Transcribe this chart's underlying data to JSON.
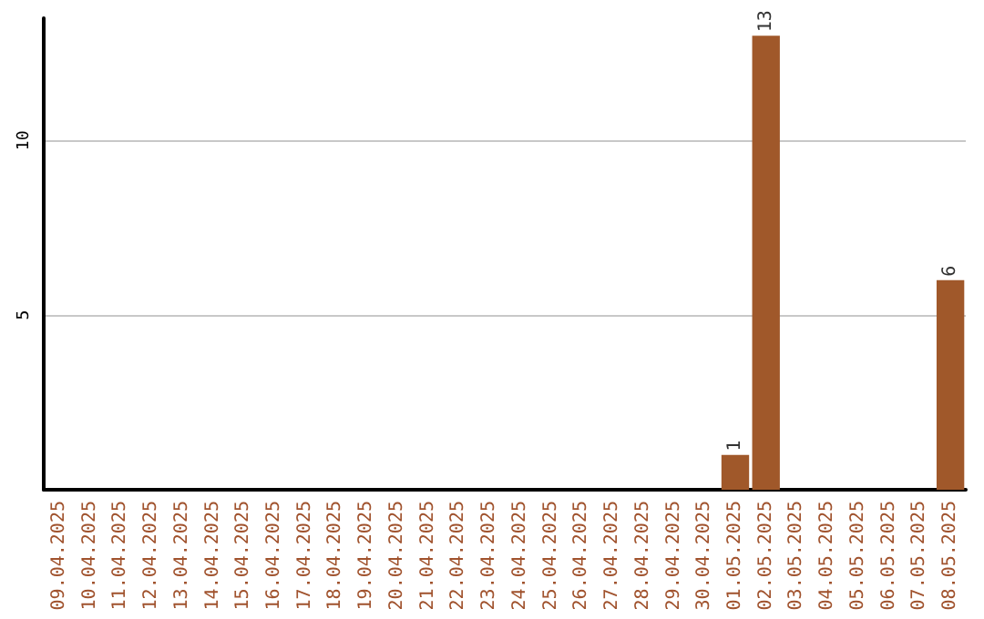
{
  "chart_data": {
    "type": "bar",
    "categories": [
      "09.04.2025",
      "10.04.2025",
      "11.04.2025",
      "12.04.2025",
      "13.04.2025",
      "14.04.2025",
      "15.04.2025",
      "16.04.2025",
      "17.04.2025",
      "18.04.2025",
      "19.04.2025",
      "20.04.2025",
      "21.04.2025",
      "22.04.2025",
      "23.04.2025",
      "24.04.2025",
      "25.04.2025",
      "26.04.2025",
      "27.04.2025",
      "28.04.2025",
      "29.04.2025",
      "30.04.2025",
      "01.05.2025",
      "02.05.2025",
      "03.05.2025",
      "04.05.2025",
      "05.05.2025",
      "06.05.2025",
      "07.05.2025",
      "08.05.2025"
    ],
    "values": [
      0,
      0,
      0,
      0,
      0,
      0,
      0,
      0,
      0,
      0,
      0,
      0,
      0,
      0,
      0,
      0,
      0,
      0,
      0,
      0,
      0,
      0,
      1,
      13,
      0,
      0,
      0,
      0,
      0,
      6
    ],
    "value_labels": [
      null,
      null,
      null,
      null,
      null,
      null,
      null,
      null,
      null,
      null,
      null,
      null,
      null,
      null,
      null,
      null,
      null,
      null,
      null,
      null,
      null,
      null,
      "1",
      "13",
      null,
      null,
      null,
      null,
      null,
      "6"
    ],
    "color": "#a0582a",
    "ylim": [
      0,
      13.5
    ],
    "yticks": [
      5,
      10
    ],
    "grid": "y"
  }
}
